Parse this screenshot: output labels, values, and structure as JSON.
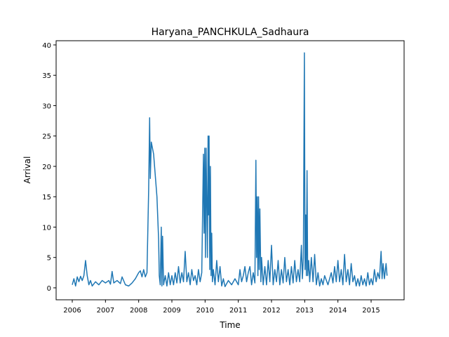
{
  "chart_data": {
    "type": "line",
    "title": "Haryana_PANCHKULA_Sadhaura",
    "xlabel": "Time",
    "ylabel": "Arrival",
    "xlim": [
      2005.514,
      2015.993
    ],
    "xticks": [
      2006,
      2007,
      2008,
      2009,
      2010,
      2011,
      2012,
      2013,
      2014,
      2015
    ],
    "ylim": [
      -1.97,
      40.69
    ],
    "yticks": [
      0,
      5,
      10,
      15,
      20,
      25,
      30,
      35,
      40
    ],
    "series": [
      {
        "color": "#1f77b4",
        "x": [
          2006.0,
          2006.05,
          2006.1,
          2006.15,
          2006.2,
          2006.25,
          2006.3,
          2006.35,
          2006.4,
          2006.45,
          2006.5,
          2006.55,
          2006.6,
          2006.7,
          2006.8,
          2006.9,
          2007.0,
          2007.1,
          2007.15,
          2007.2,
          2007.25,
          2007.35,
          2007.45,
          2007.5,
          2007.6,
          2007.7,
          2007.8,
          2007.9,
          2008.0,
          2008.05,
          2008.1,
          2008.15,
          2008.2,
          2008.25,
          2008.3,
          2008.33,
          2008.35,
          2008.38,
          2008.45,
          2008.55,
          2008.6,
          2008.62,
          2008.65,
          2008.68,
          2008.7,
          2008.72,
          2008.75,
          2008.8,
          2008.85,
          2008.9,
          2008.95,
          2009.0,
          2009.05,
          2009.1,
          2009.15,
          2009.2,
          2009.25,
          2009.3,
          2009.35,
          2009.4,
          2009.45,
          2009.5,
          2009.55,
          2009.6,
          2009.65,
          2009.7,
          2009.75,
          2009.8,
          2009.85,
          2009.9,
          2009.95,
          2009.97,
          2009.99,
          2010.01,
          2010.03,
          2010.05,
          2010.07,
          2010.09,
          2010.1,
          2010.12,
          2010.14,
          2010.16,
          2010.18,
          2010.2,
          2010.22,
          2010.25,
          2010.3,
          2010.35,
          2010.4,
          2010.45,
          2010.5,
          2010.55,
          2010.6,
          2010.7,
          2010.8,
          2010.9,
          2011.0,
          2011.05,
          2011.1,
          2011.15,
          2011.2,
          2011.25,
          2011.3,
          2011.35,
          2011.4,
          2011.45,
          2011.5,
          2011.53,
          2011.55,
          2011.57,
          2011.59,
          2011.61,
          2011.63,
          2011.65,
          2011.68,
          2011.7,
          2011.75,
          2011.8,
          2011.85,
          2011.9,
          2011.95,
          2012.0,
          2012.05,
          2012.1,
          2012.15,
          2012.2,
          2012.25,
          2012.3,
          2012.35,
          2012.4,
          2012.45,
          2012.5,
          2012.55,
          2012.6,
          2012.65,
          2012.7,
          2012.75,
          2012.8,
          2012.85,
          2012.9,
          2012.93,
          2012.96,
          2012.99,
          2013.01,
          2013.03,
          2013.05,
          2013.07,
          2013.09,
          2013.12,
          2013.15,
          2013.2,
          2013.25,
          2013.3,
          2013.35,
          2013.4,
          2013.45,
          2013.5,
          2013.55,
          2013.6,
          2013.7,
          2013.8,
          2013.85,
          2013.9,
          2013.95,
          2014.0,
          2014.05,
          2014.1,
          2014.15,
          2014.2,
          2014.25,
          2014.3,
          2014.35,
          2014.4,
          2014.45,
          2014.5,
          2014.55,
          2014.6,
          2014.65,
          2014.7,
          2014.75,
          2014.8,
          2014.85,
          2014.9,
          2014.95,
          2015.0,
          2015.05,
          2015.1,
          2015.15,
          2015.2,
          2015.25,
          2015.3,
          2015.33,
          2015.36,
          2015.4,
          2015.45,
          2015.48
        ],
        "values": [
          0.5,
          1.5,
          0.3,
          1.8,
          1.0,
          1.9,
          1.2,
          2.0,
          4.5,
          2.0,
          0.5,
          1.2,
          0.3,
          1.0,
          0.5,
          1.2,
          0.8,
          1.2,
          0.6,
          2.7,
          0.8,
          1.2,
          0.7,
          1.8,
          0.5,
          0.3,
          0.8,
          1.5,
          2.5,
          2.8,
          1.8,
          3.0,
          1.8,
          2.5,
          16,
          28,
          18,
          24,
          22,
          15,
          8,
          2,
          0.5,
          10,
          0.3,
          8.5,
          0.5,
          2,
          0.3,
          2.5,
          0.5,
          2,
          0.5,
          2.5,
          0.8,
          3.5,
          0.8,
          2.5,
          1.0,
          6,
          1.0,
          2.5,
          0.5,
          3,
          1.2,
          2,
          0.5,
          3,
          1,
          2.5,
          22,
          9,
          23,
          5,
          23,
          14,
          5,
          25,
          12,
          25,
          3,
          20,
          2,
          9,
          1,
          3,
          0.5,
          4.5,
          1,
          3.5,
          0.3,
          1.5,
          0.2,
          1.2,
          0.5,
          1.5,
          0.5,
          3,
          1.0,
          2.0,
          3.5,
          1,
          2.5,
          3.5,
          0.5,
          2.5,
          0.8,
          21,
          5,
          15,
          2,
          15,
          3,
          13,
          1,
          5,
          0.5,
          3.5,
          0.5,
          4.5,
          1,
          7,
          0.5,
          3,
          1,
          4.5,
          0.5,
          3,
          0.8,
          5,
          1,
          3,
          0.5,
          3.5,
          0.8,
          4.5,
          1,
          3,
          1,
          7,
          1.5,
          5,
          38.7,
          3,
          12,
          2,
          19.3,
          2,
          4.5,
          1,
          5,
          1,
          5.5,
          0.5,
          2.5,
          0.3,
          1.5,
          0.5,
          2,
          0.5,
          2.5,
          0.8,
          3.5,
          1,
          4.5,
          1,
          3,
          0.5,
          5.5,
          1,
          3,
          0.5,
          4,
          1,
          2,
          0.3,
          1.5,
          0.3,
          2,
          0.5,
          1.5,
          0.3,
          2.5,
          0.5,
          1.5,
          0.5,
          3,
          1,
          2.5,
          1.5,
          6,
          1.5,
          4,
          1.5,
          4,
          2
        ]
      }
    ]
  }
}
